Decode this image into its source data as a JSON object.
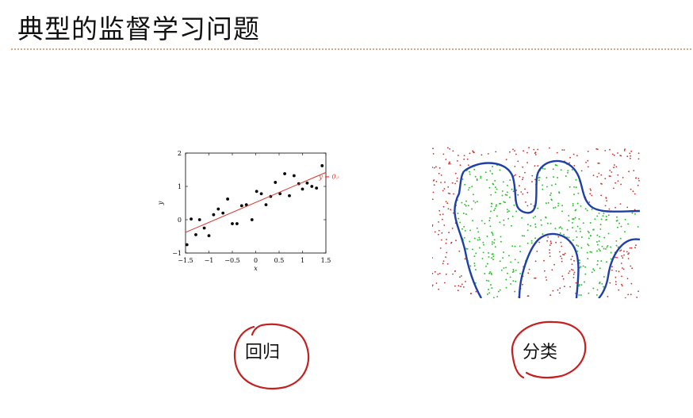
{
  "slide": {
    "title": "典型的监督学习问题"
  },
  "regression": {
    "caption": "回归",
    "equation": "y = 0.60·x+0.52",
    "xlabel": "x",
    "ylabel": "y",
    "accent_color": "#d9362b",
    "chart_data": {
      "type": "scatter",
      "xlabel": "x",
      "ylabel": "y",
      "xlim": [
        -1.5,
        1.5
      ],
      "ylim": [
        -1,
        2
      ],
      "xticks": [
        "−1.5",
        "−1",
        "−0.5",
        "0",
        "0.5",
        "1",
        "1.5"
      ],
      "yticks": [
        "−1",
        "0",
        "1",
        "2"
      ],
      "points": [
        [
          -1.47,
          -0.75
        ],
        [
          -1.38,
          0.02
        ],
        [
          -1.28,
          -0.45
        ],
        [
          -1.2,
          0.0
        ],
        [
          -1.1,
          -0.25
        ],
        [
          -1.0,
          -0.48
        ],
        [
          -0.9,
          0.15
        ],
        [
          -0.8,
          0.32
        ],
        [
          -0.7,
          0.2
        ],
        [
          -0.6,
          0.62
        ],
        [
          -0.5,
          -0.12
        ],
        [
          -0.4,
          -0.12
        ],
        [
          -0.3,
          0.42
        ],
        [
          -0.2,
          0.45
        ],
        [
          -0.08,
          0.0
        ],
        [
          0.02,
          0.85
        ],
        [
          0.12,
          0.78
        ],
        [
          0.22,
          0.45
        ],
        [
          0.32,
          0.7
        ],
        [
          0.42,
          1.12
        ],
        [
          0.52,
          0.78
        ],
        [
          0.62,
          1.38
        ],
        [
          0.72,
          0.72
        ],
        [
          0.82,
          1.32
        ],
        [
          0.92,
          1.08
        ],
        [
          1.0,
          0.92
        ],
        [
          1.1,
          1.1
        ],
        [
          1.2,
          1.0
        ],
        [
          1.3,
          0.95
        ],
        [
          1.42,
          1.62
        ]
      ],
      "fit": {
        "slope": 0.6,
        "intercept": 0.52,
        "label": "y = 0.60·x+0.52",
        "color": "#d9362b"
      }
    }
  },
  "classification": {
    "caption": "分类",
    "boundary_color": "#1f3fa8",
    "inner_color": "#22c422",
    "outer_color": "#c8302a"
  },
  "annotation": {
    "circle_color": "#c61f1f"
  }
}
